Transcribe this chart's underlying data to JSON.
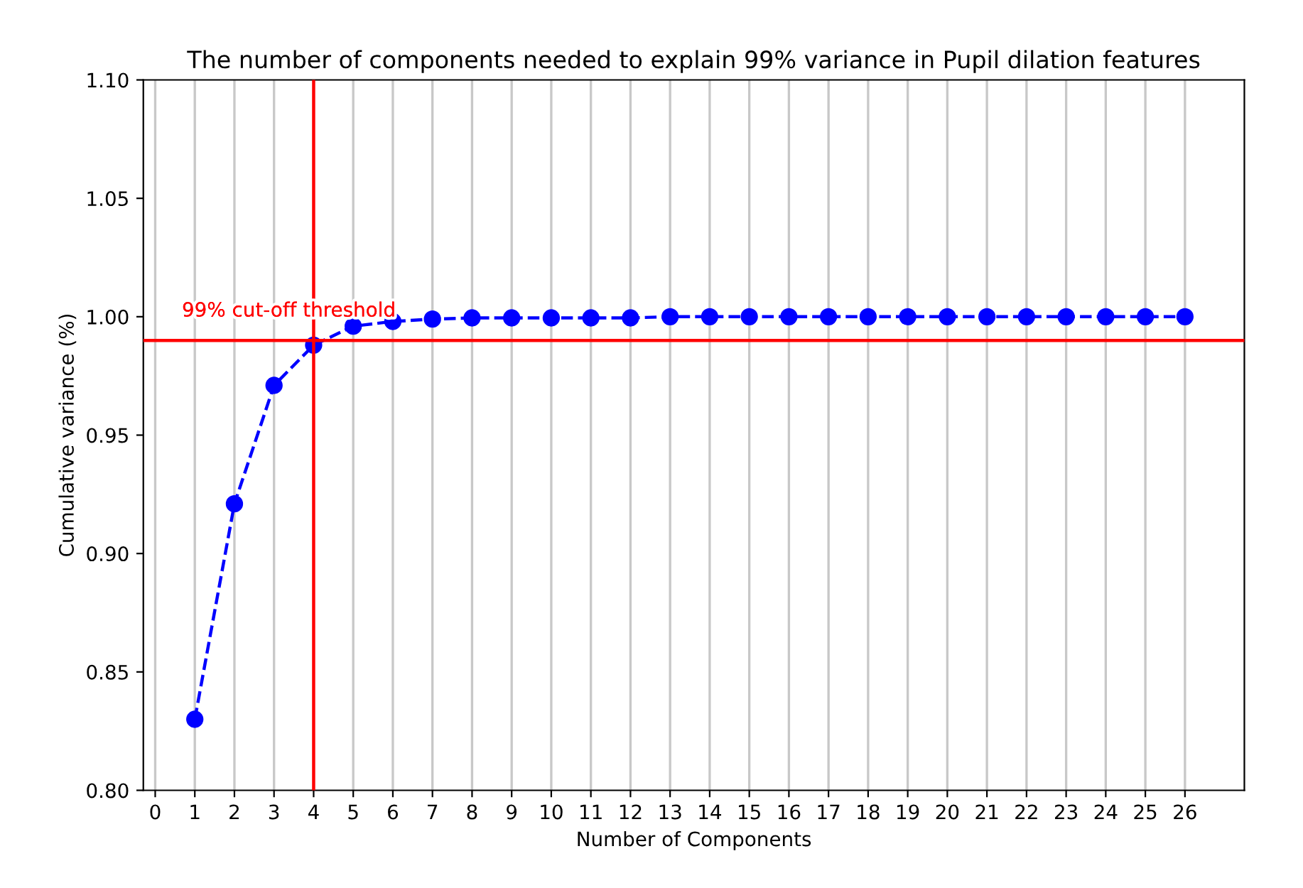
{
  "chart_data": {
    "type": "line",
    "title": "The number of components needed to explain 99% variance in Pupil dilation features",
    "xlabel": "Number of Components",
    "ylabel": "Cumulative variance (%)",
    "x": [
      1,
      2,
      3,
      4,
      5,
      6,
      7,
      8,
      9,
      10,
      11,
      12,
      13,
      14,
      15,
      16,
      17,
      18,
      19,
      20,
      21,
      22,
      23,
      24,
      25,
      26
    ],
    "series": [
      {
        "color": "#0000ff",
        "values": [
          0.83,
          0.921,
          0.971,
          0.988,
          0.996,
          0.998,
          0.999,
          0.9995,
          0.9995,
          0.9995,
          0.9995,
          0.9995,
          1.0,
          1.0,
          1.0,
          1.0,
          1.0,
          1.0,
          1.0,
          1.0,
          1.0,
          1.0,
          1.0,
          1.0,
          1.0,
          1.0
        ]
      }
    ],
    "marker": "circle",
    "line_style": "dashed",
    "xlim": [
      -0.3,
      27.5
    ],
    "xticks": [
      0,
      1,
      2,
      3,
      4,
      5,
      6,
      7,
      8,
      9,
      10,
      11,
      12,
      13,
      14,
      15,
      16,
      17,
      18,
      19,
      20,
      21,
      22,
      23,
      24,
      25,
      26
    ],
    "ylim": [
      0.8,
      1.1
    ],
    "yticks": [
      {
        "value": 0.8,
        "label": "0.80"
      },
      {
        "value": 0.85,
        "label": "0.85"
      },
      {
        "value": 0.9,
        "label": "0.90"
      },
      {
        "value": 0.95,
        "label": "0.95"
      },
      {
        "value": 1.0,
        "label": "1.00"
      },
      {
        "value": 1.05,
        "label": "1.05"
      },
      {
        "value": 1.1,
        "label": "1.10"
      }
    ],
    "grid": "x",
    "ref_lines": [
      {
        "axis": "y",
        "value": 0.99,
        "color": "#ff0000",
        "label": "99% cut-off threshold"
      },
      {
        "axis": "x",
        "value": 4,
        "color": "#ff0000"
      }
    ]
  }
}
